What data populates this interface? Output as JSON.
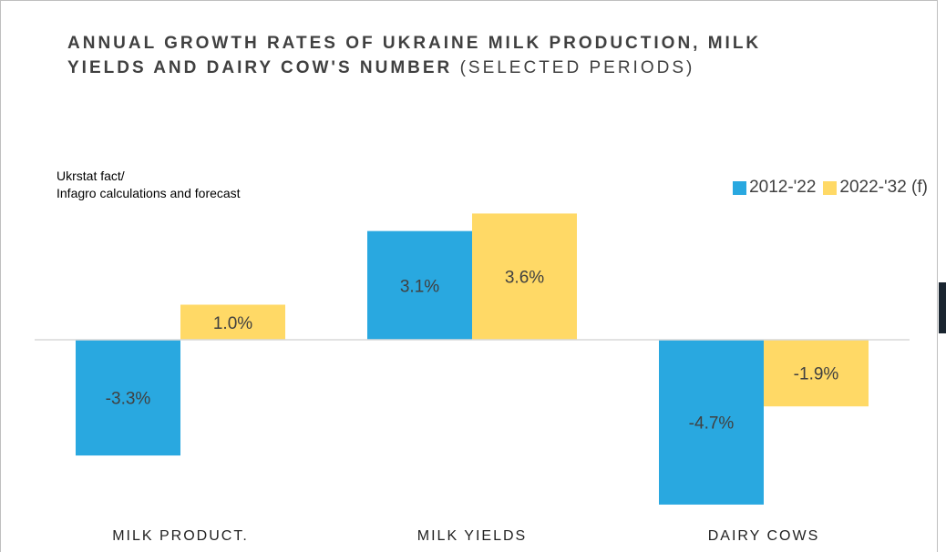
{
  "title": {
    "bold": "ANNUAL GROWTH RATES OF UKRAINE MILK PRODUCTION, MILK YIELDS AND DAIRY COW'S NUMBER",
    "light": "(SELECTED PERIODS)"
  },
  "source": {
    "line1": "Ukrstat fact/",
    "line2": "Infagro calculations and forecast"
  },
  "colors": {
    "series1": "#29a8e0",
    "series2": "#ffd966",
    "axis": "#d9d9d9"
  },
  "chart_data": {
    "type": "bar",
    "categories": [
      "MILK PRODUCT.",
      "MILK YIELDS",
      "DAIRY COWS"
    ],
    "series": [
      {
        "name": "2012-'22",
        "values": [
          -3.3,
          3.1,
          -4.7
        ],
        "labels": [
          "-3.3%",
          "3.1%",
          "-4.7%"
        ]
      },
      {
        "name": "2022-'32 (f)",
        "values": [
          1.0,
          3.6,
          -1.9
        ],
        "labels": [
          "1.0%",
          "3.6%",
          "-1.9%"
        ]
      }
    ],
    "legend": "top-right",
    "grid": false
  }
}
